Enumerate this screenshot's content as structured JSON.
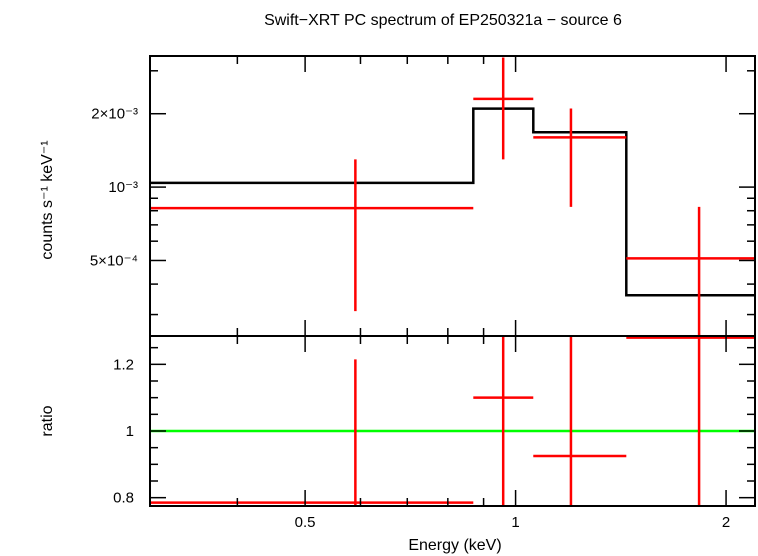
{
  "chart_data": [
    {
      "type": "step+errorbar",
      "panel": "spectrum",
      "title": "Swift−XRT PC spectrum of EP250321a − source 6",
      "ylabel": "counts s⁻¹ keV⁻¹",
      "xscale": "log",
      "yscale": "log",
      "xlim": [
        0.3,
        2.2
      ],
      "ylim": [
        0.000245,
        0.00345
      ],
      "yticks": [
        {
          "value": 0.0005,
          "label": "5×10⁻⁴"
        },
        {
          "value": 0.001,
          "label": "10⁻³"
        },
        {
          "value": 0.002,
          "label": "2×10⁻³"
        }
      ],
      "series": [
        {
          "kind": "data",
          "color": "#ff0000",
          "points": [
            {
              "x": 0.59,
              "xlo": 0.3,
              "xhi": 0.87,
              "y": 0.00082,
              "ylo": 0.00031,
              "yhi": 0.0013
            },
            {
              "x": 0.96,
              "xlo": 0.87,
              "xhi": 1.06,
              "y": 0.0023,
              "ylo": 0.0013,
              "yhi": 0.0034
            },
            {
              "x": 1.2,
              "xlo": 1.06,
              "xhi": 1.44,
              "y": 0.0016,
              "ylo": 0.00083,
              "yhi": 0.0021
            },
            {
              "x": 1.83,
              "xlo": 1.44,
              "xhi": 2.2,
              "y": 0.00051,
              "ylo": 0.0002,
              "yhi": 0.00083
            }
          ]
        },
        {
          "kind": "model",
          "color": "#000000",
          "steps": [
            {
              "xlo": 0.3,
              "xhi": 0.87,
              "y": 0.00104
            },
            {
              "xlo": 0.87,
              "xhi": 1.06,
              "y": 0.0021
            },
            {
              "xlo": 1.06,
              "xhi": 1.44,
              "y": 0.00168
            },
            {
              "xlo": 1.44,
              "xhi": 2.2,
              "y": 0.00036
            }
          ]
        }
      ]
    },
    {
      "type": "errorbar",
      "panel": "ratio",
      "ylabel": "ratio",
      "xlabel": "Energy (keV)",
      "xscale": "log",
      "xlim": [
        0.3,
        2.2
      ],
      "ylim": [
        0.775,
        1.285
      ],
      "xticks": [
        {
          "value": 0.5,
          "label": "0.5"
        },
        {
          "value": 1,
          "label": "1"
        },
        {
          "value": 2,
          "label": "2"
        }
      ],
      "yticks": [
        {
          "value": 0.8,
          "label": "0.8"
        },
        {
          "value": 1,
          "label": "1"
        },
        {
          "value": 1.2,
          "label": "1.2"
        }
      ],
      "reference_line": {
        "y": 1,
        "color": "#00ff00"
      },
      "series": [
        {
          "kind": "data",
          "color": "#ff0000",
          "points": [
            {
              "x": 0.59,
              "xlo": 0.3,
              "xhi": 0.87,
              "y": 0.785,
              "ylo": 0.77,
              "yhi": 1.215
            },
            {
              "x": 0.96,
              "xlo": 0.87,
              "xhi": 1.06,
              "y": 1.1,
              "ylo": 0.77,
              "yhi": 1.3
            },
            {
              "x": 1.2,
              "xlo": 1.06,
              "xhi": 1.44,
              "y": 0.925,
              "ylo": 0.77,
              "yhi": 1.3
            },
            {
              "x": 1.83,
              "xlo": 1.44,
              "xhi": 2.2,
              "y": 1.28,
              "ylo": 0.77,
              "yhi": 1.3
            }
          ]
        }
      ]
    }
  ]
}
